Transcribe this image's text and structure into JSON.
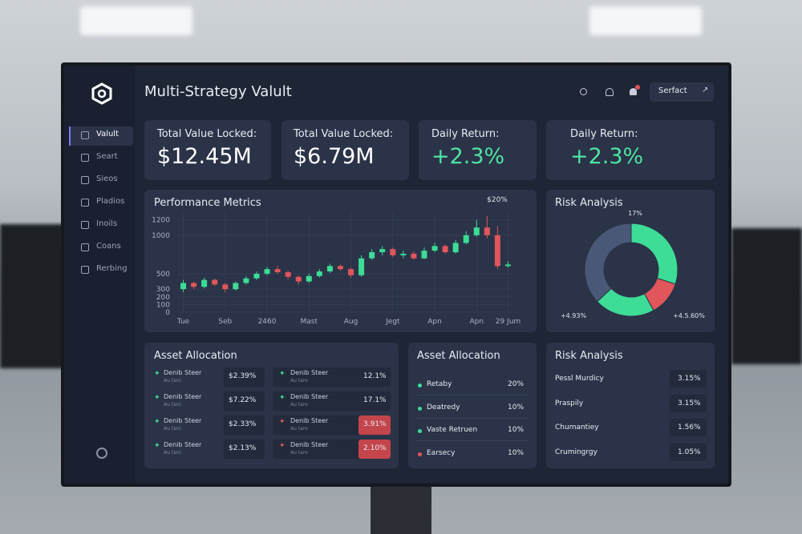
{
  "header": {
    "title": "Multi-Strategy Valult",
    "button": "Serfact"
  },
  "sidebar": {
    "items": [
      "Valult",
      "Seart",
      "Sieos",
      "Pladios",
      "Inoils",
      "Coans",
      "Rerbing"
    ]
  },
  "stats": [
    {
      "label": "Total Value Locked:",
      "value": "$12.45M",
      "color": "#ffffff"
    },
    {
      "label": "Total Value Locked:",
      "value": "$6.79M",
      "color": "#ffffff"
    },
    {
      "label": "Daily Return:",
      "value": "+2.3%",
      "color": "#4fe3a4"
    },
    {
      "label": "Daily Return:",
      "value": "+2.3%",
      "color": "#4fe3a4"
    }
  ],
  "chart_data": [
    {
      "type": "candlestick",
      "title": "Performance Metrics",
      "annotation": "$20%",
      "categories": [
        "Tue",
        null,
        null,
        null,
        "Seb",
        null,
        null,
        null,
        "2460",
        null,
        null,
        null,
        "Mast",
        null,
        null,
        null,
        "Aug",
        null,
        null,
        null,
        "Jegt",
        null,
        null,
        null,
        "Apn",
        null,
        null,
        null,
        "Apn",
        null,
        null,
        "29 Jum"
      ],
      "open": [
        300,
        380,
        330,
        420,
        360,
        300,
        380,
        440,
        500,
        560,
        520,
        460,
        400,
        470,
        530,
        600,
        560,
        480,
        700,
        780,
        820,
        740,
        760,
        700,
        800,
        860,
        780,
        900,
        1000,
        1100,
        1000,
        600
      ],
      "high": [
        420,
        400,
        450,
        440,
        380,
        400,
        470,
        530,
        590,
        600,
        540,
        480,
        500,
        560,
        630,
        620,
        580,
        740,
        820,
        860,
        840,
        800,
        790,
        840,
        900,
        880,
        940,
        1050,
        1200,
        1250,
        1120,
        660
      ],
      "low": [
        260,
        300,
        310,
        340,
        260,
        280,
        360,
        420,
        480,
        500,
        430,
        360,
        380,
        450,
        510,
        540,
        450,
        460,
        680,
        740,
        720,
        700,
        680,
        690,
        780,
        760,
        760,
        880,
        980,
        960,
        560,
        580
      ],
      "close": [
        380,
        330,
        420,
        360,
        300,
        380,
        440,
        500,
        560,
        520,
        460,
        400,
        470,
        530,
        600,
        560,
        480,
        700,
        780,
        820,
        740,
        760,
        700,
        800,
        860,
        780,
        900,
        1000,
        1100,
        1000,
        600,
        620
      ],
      "up_color": "#3ddc97",
      "down_color": "#e0565b",
      "ylim": [
        0,
        1300
      ],
      "yticks": [
        0,
        100,
        200,
        300,
        500,
        1000,
        1200
      ],
      "grid": true
    },
    {
      "type": "pie",
      "title": "Risk Analysis",
      "values": [
        30,
        12,
        21,
        37
      ],
      "colors": [
        "#3ddc97",
        "#e0565b",
        "#3ddc97",
        "#4a5878"
      ],
      "annotations": [
        "17%",
        "+4.93%",
        "+4.5.60%"
      ]
    }
  ],
  "asset_allocation": {
    "title": "Asset Allocation",
    "columns": [
      [
        {
          "name": "Denib Steer",
          "sub": "Au taro",
          "value": "$2.39%",
          "trend": "up"
        },
        {
          "name": "Denib Steer",
          "sub": "Au taro",
          "value": "$7.22%",
          "trend": "up"
        },
        {
          "name": "Denib Steer",
          "sub": "Au taro",
          "value": "$2.33%",
          "trend": "up"
        },
        {
          "name": "Denib Steer",
          "sub": "Au taro",
          "value": "$2.13%",
          "trend": "up"
        }
      ],
      [
        {
          "name": "Denib Steer",
          "sub": "Au taro",
          "value": "12.1%",
          "trend": "up"
        },
        {
          "name": "Denib Steer",
          "sub": "Au taro",
          "value": "17.1%",
          "trend": "up"
        },
        {
          "name": "Denib Steer",
          "sub": "Au taro",
          "value": "3.91%",
          "trend": "down"
        },
        {
          "name": "Denib Steer",
          "sub": "Au taro",
          "value": "2.10%",
          "trend": "down"
        }
      ]
    ]
  },
  "allocation_list": {
    "title": "Asset Allocation",
    "rows": [
      {
        "name": "Retaby",
        "value": "20%",
        "color": "#3ddc97"
      },
      {
        "name": "Deatredy",
        "value": "10%",
        "color": "#3ddc97"
      },
      {
        "name": "Vaste Retruen",
        "value": "10%",
        "color": "#3ddc97"
      },
      {
        "name": "Earsecy",
        "value": "10%",
        "color": "#e0565b"
      }
    ]
  },
  "risk_list": {
    "title": "Risk Analysis",
    "rows": [
      {
        "name": "Pessl Murdicy",
        "value": "3.15%"
      },
      {
        "name": "Praspily",
        "value": "3.15%"
      },
      {
        "name": "Chumantiey",
        "value": "1.56%"
      },
      {
        "name": "Crumingrgy",
        "value": "1.05%"
      }
    ]
  }
}
